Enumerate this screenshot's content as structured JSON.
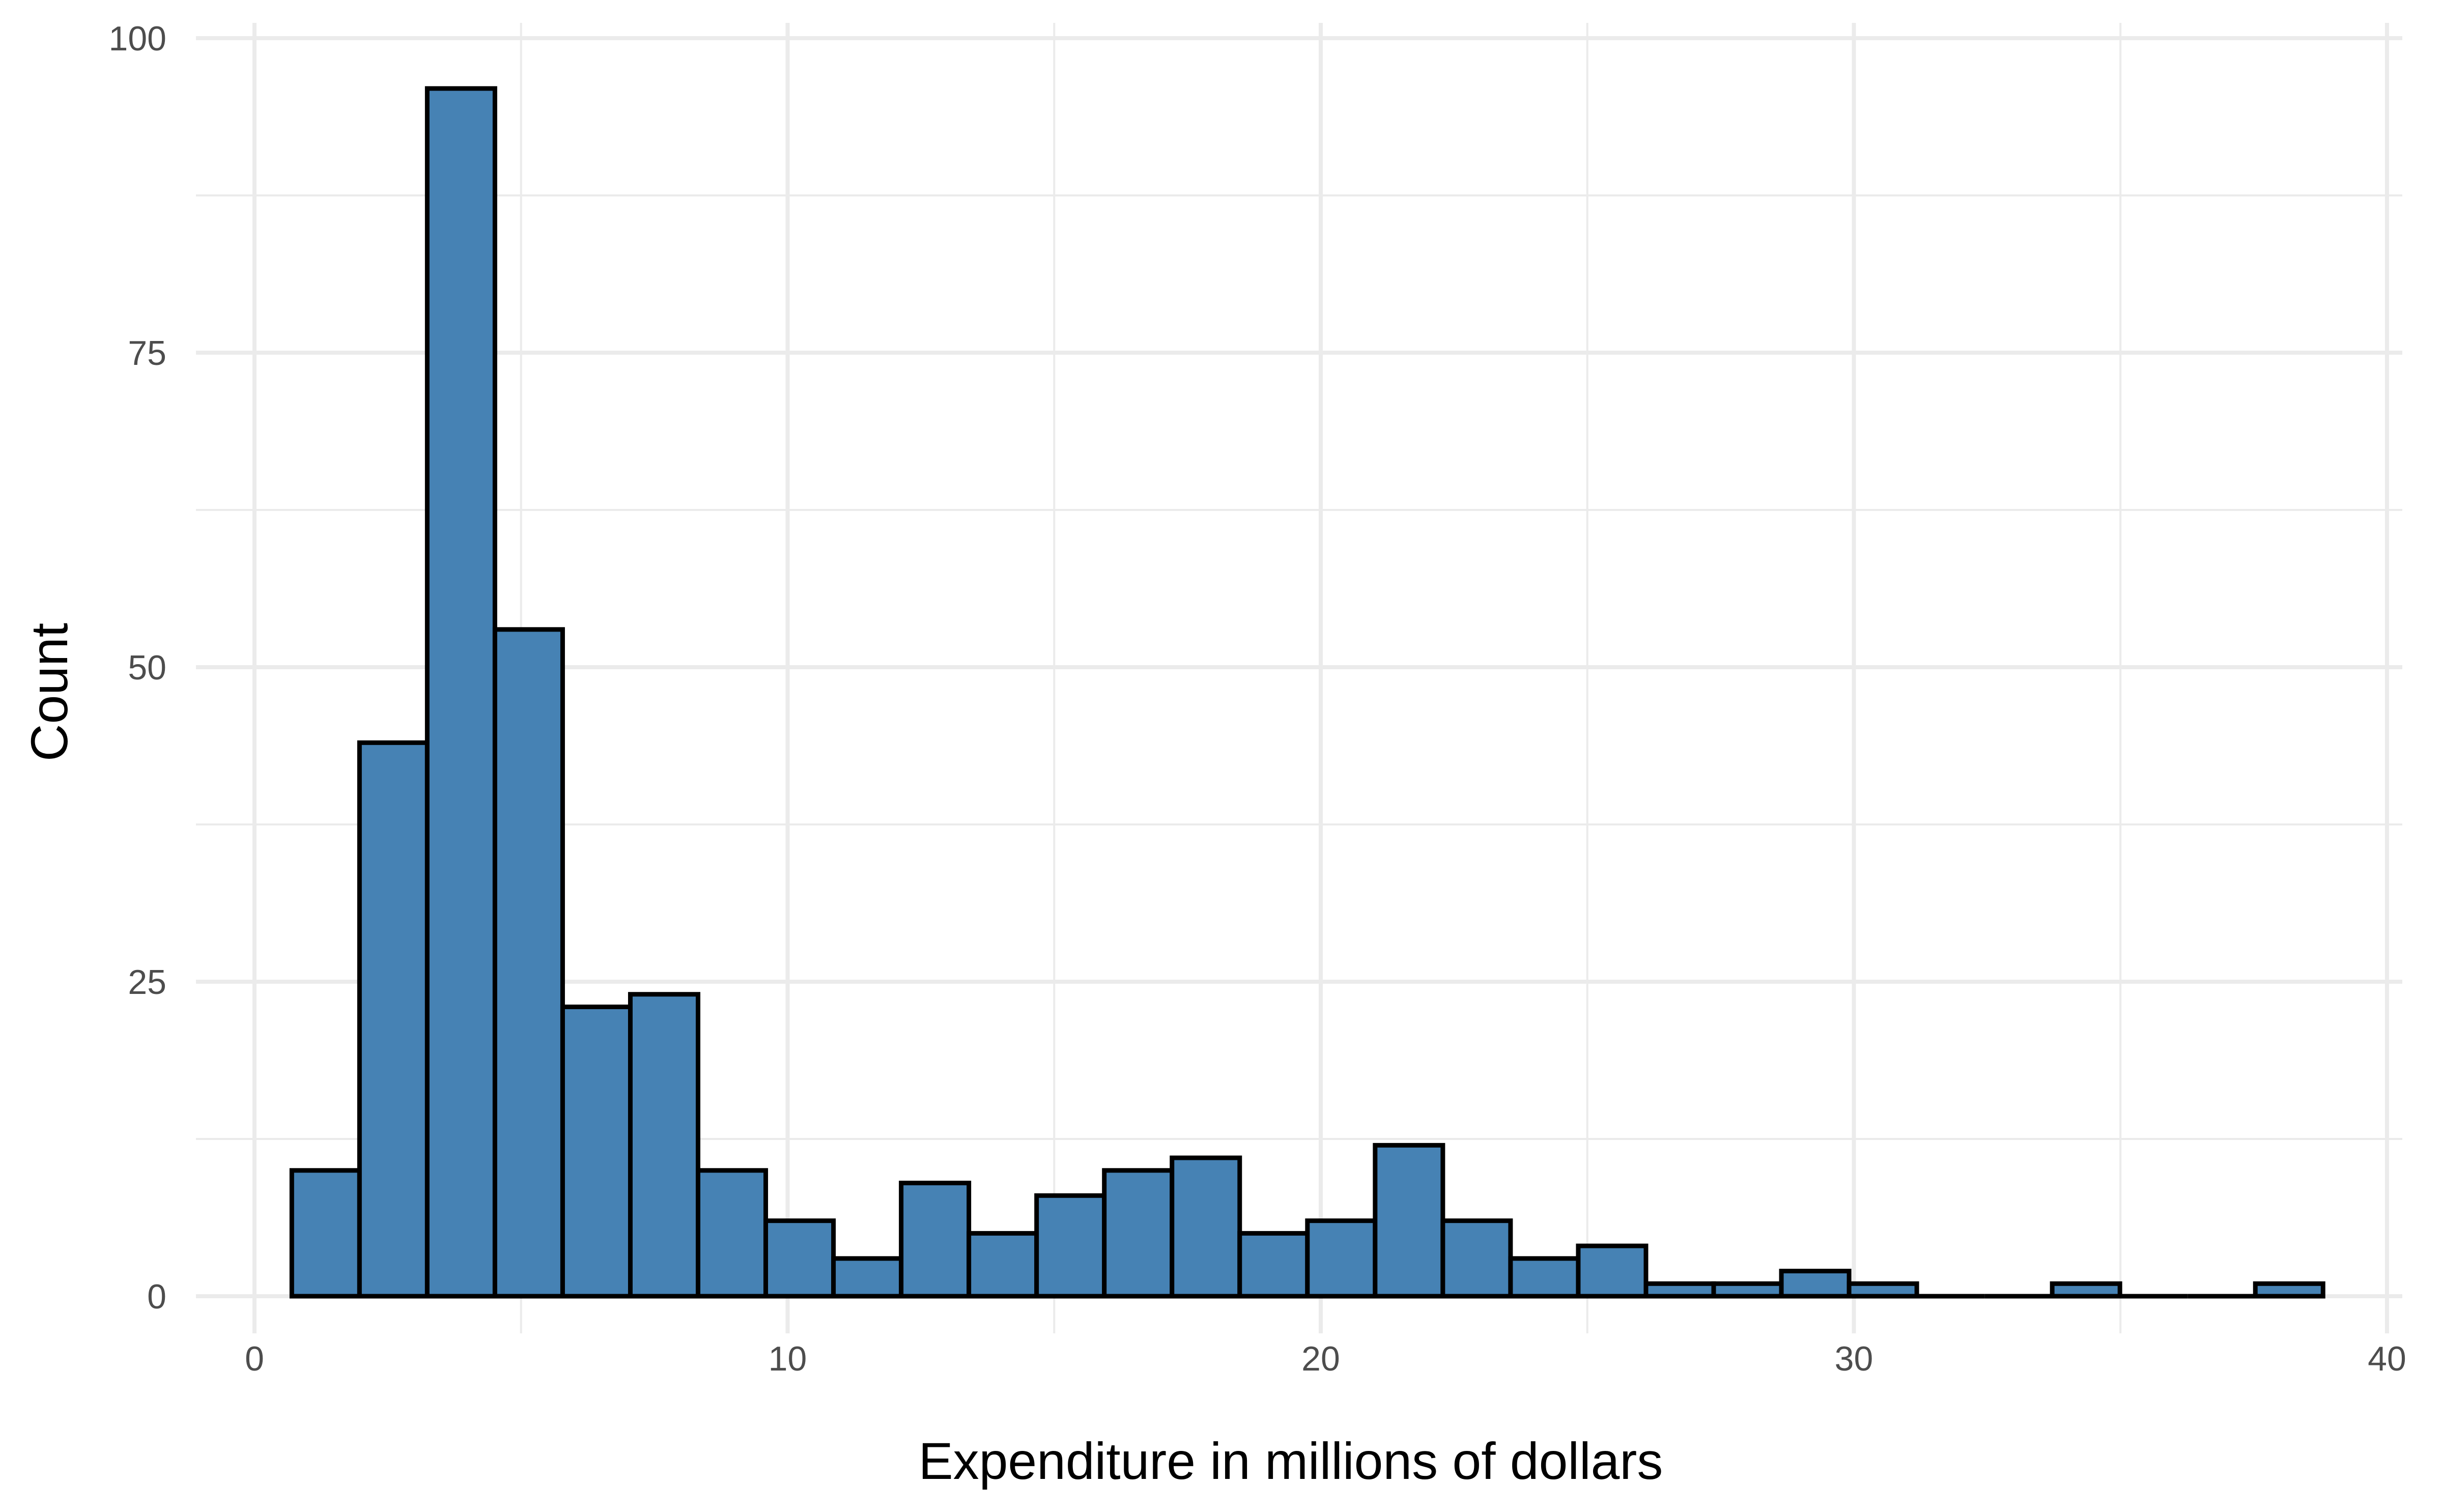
{
  "chart_data": {
    "type": "bar",
    "subtype": "histogram",
    "title": "",
    "xlabel": "Expenditure in millions of dollars",
    "ylabel": "Count",
    "xlim": [
      0,
      40
    ],
    "ylim": [
      0,
      100
    ],
    "x_ticks": [
      0,
      10,
      20,
      30,
      40
    ],
    "x_tick_labels": [
      "0",
      "10",
      "20",
      "30",
      "40"
    ],
    "y_ticks": [
      0,
      25,
      50,
      75,
      100
    ],
    "y_tick_labels": [
      "0",
      "25",
      "50",
      "75",
      "100"
    ],
    "grid": true,
    "legend": "none",
    "bin_width": 1.27,
    "bins": [
      {
        "start": 0.7,
        "end": 1.97,
        "count": 10
      },
      {
        "start": 1.97,
        "end": 3.24,
        "count": 44
      },
      {
        "start": 3.24,
        "end": 4.51,
        "count": 96
      },
      {
        "start": 4.51,
        "end": 5.78,
        "count": 53
      },
      {
        "start": 5.78,
        "end": 7.05,
        "count": 23
      },
      {
        "start": 7.05,
        "end": 8.32,
        "count": 24
      },
      {
        "start": 8.32,
        "end": 9.59,
        "count": 10
      },
      {
        "start": 9.59,
        "end": 10.86,
        "count": 6
      },
      {
        "start": 10.86,
        "end": 12.13,
        "count": 3
      },
      {
        "start": 12.13,
        "end": 13.4,
        "count": 9
      },
      {
        "start": 13.4,
        "end": 14.67,
        "count": 5
      },
      {
        "start": 14.67,
        "end": 15.94,
        "count": 8
      },
      {
        "start": 15.94,
        "end": 17.21,
        "count": 10
      },
      {
        "start": 17.21,
        "end": 18.48,
        "count": 11
      },
      {
        "start": 18.48,
        "end": 19.75,
        "count": 5
      },
      {
        "start": 19.75,
        "end": 21.02,
        "count": 6
      },
      {
        "start": 21.02,
        "end": 22.29,
        "count": 12
      },
      {
        "start": 22.29,
        "end": 23.56,
        "count": 6
      },
      {
        "start": 23.56,
        "end": 24.83,
        "count": 3
      },
      {
        "start": 24.83,
        "end": 26.1,
        "count": 4
      },
      {
        "start": 26.1,
        "end": 27.37,
        "count": 1
      },
      {
        "start": 27.37,
        "end": 28.64,
        "count": 1
      },
      {
        "start": 28.64,
        "end": 29.91,
        "count": 2
      },
      {
        "start": 29.91,
        "end": 31.18,
        "count": 1
      },
      {
        "start": 31.18,
        "end": 32.45,
        "count": 0
      },
      {
        "start": 32.45,
        "end": 33.72,
        "count": 0
      },
      {
        "start": 33.72,
        "end": 34.99,
        "count": 1
      },
      {
        "start": 34.99,
        "end": 36.26,
        "count": 0
      },
      {
        "start": 36.26,
        "end": 37.53,
        "count": 0
      },
      {
        "start": 37.53,
        "end": 38.8,
        "count": 1
      }
    ],
    "colors": {
      "bar_fill": "#4682b4",
      "bar_outline": "#000000",
      "grid": "#ebebeb",
      "tick_text": "#4d4d4d",
      "title_text": "#000000",
      "background": "#ffffff"
    }
  }
}
